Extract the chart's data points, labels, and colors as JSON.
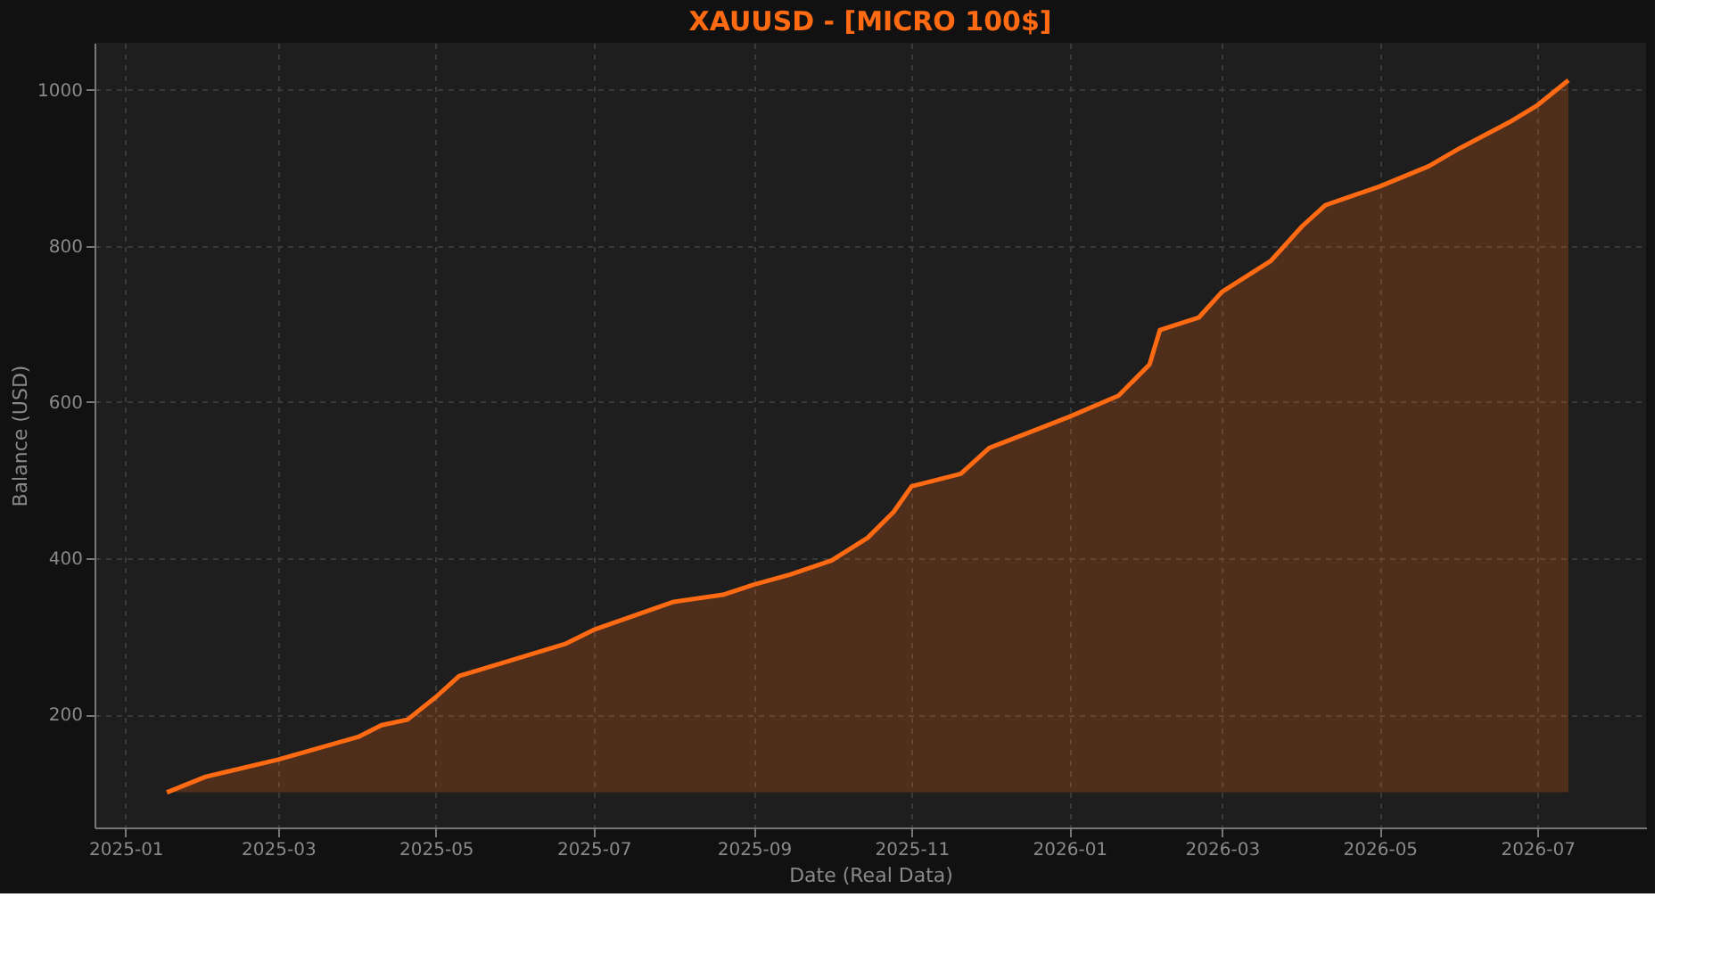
{
  "chart_data": {
    "type": "area",
    "title": "XAUUSD - [MICRO 100$]",
    "xlabel": "Date (Real Data)",
    "ylabel": "Balance (USD)",
    "x": [
      "2025-01-17",
      "2025-02-01",
      "2025-03-01",
      "2025-03-15",
      "2025-04-01",
      "2025-04-10",
      "2025-04-20",
      "2025-05-01",
      "2025-05-10",
      "2025-06-01",
      "2025-06-20",
      "2025-07-01",
      "2025-08-01",
      "2025-08-20",
      "2025-09-01",
      "2025-09-15",
      "2025-10-01",
      "2025-10-15",
      "2025-10-25",
      "2025-11-01",
      "2025-11-20",
      "2025-12-01",
      "2025-12-15",
      "2026-01-01",
      "2026-01-20",
      "2026-02-01",
      "2026-02-05",
      "2026-02-20",
      "2026-03-01",
      "2026-03-20",
      "2026-04-01",
      "2026-04-10",
      "2026-05-01",
      "2026-05-20",
      "2026-06-01",
      "2026-06-20",
      "2026-07-01",
      "2026-07-13"
    ],
    "series": [
      {
        "color": "#ff6a13",
        "values": [
          100,
          120,
          142,
          155,
          171,
          186,
          193,
          222,
          249,
          271,
          290,
          308,
          344,
          353,
          366,
          379,
          397,
          426,
          459,
          492,
          508,
          541,
          559,
          581,
          608,
          648,
          692,
          708,
          741,
          781,
          825,
          852,
          876,
          902,
          925,
          958,
          980,
          1012
        ]
      }
    ],
    "xlim": [
      "2024-12-20",
      "2026-08-12"
    ],
    "xticks": [
      "2025-01",
      "2025-03",
      "2025-05",
      "2025-07",
      "2025-09",
      "2025-11",
      "2026-01",
      "2026-03",
      "2026-05",
      "2026-07"
    ],
    "ylim": [
      55,
      1060
    ],
    "yticks": [
      200,
      400,
      600,
      800,
      1000
    ],
    "grid": true,
    "line_style": "solid",
    "marker": "none"
  }
}
